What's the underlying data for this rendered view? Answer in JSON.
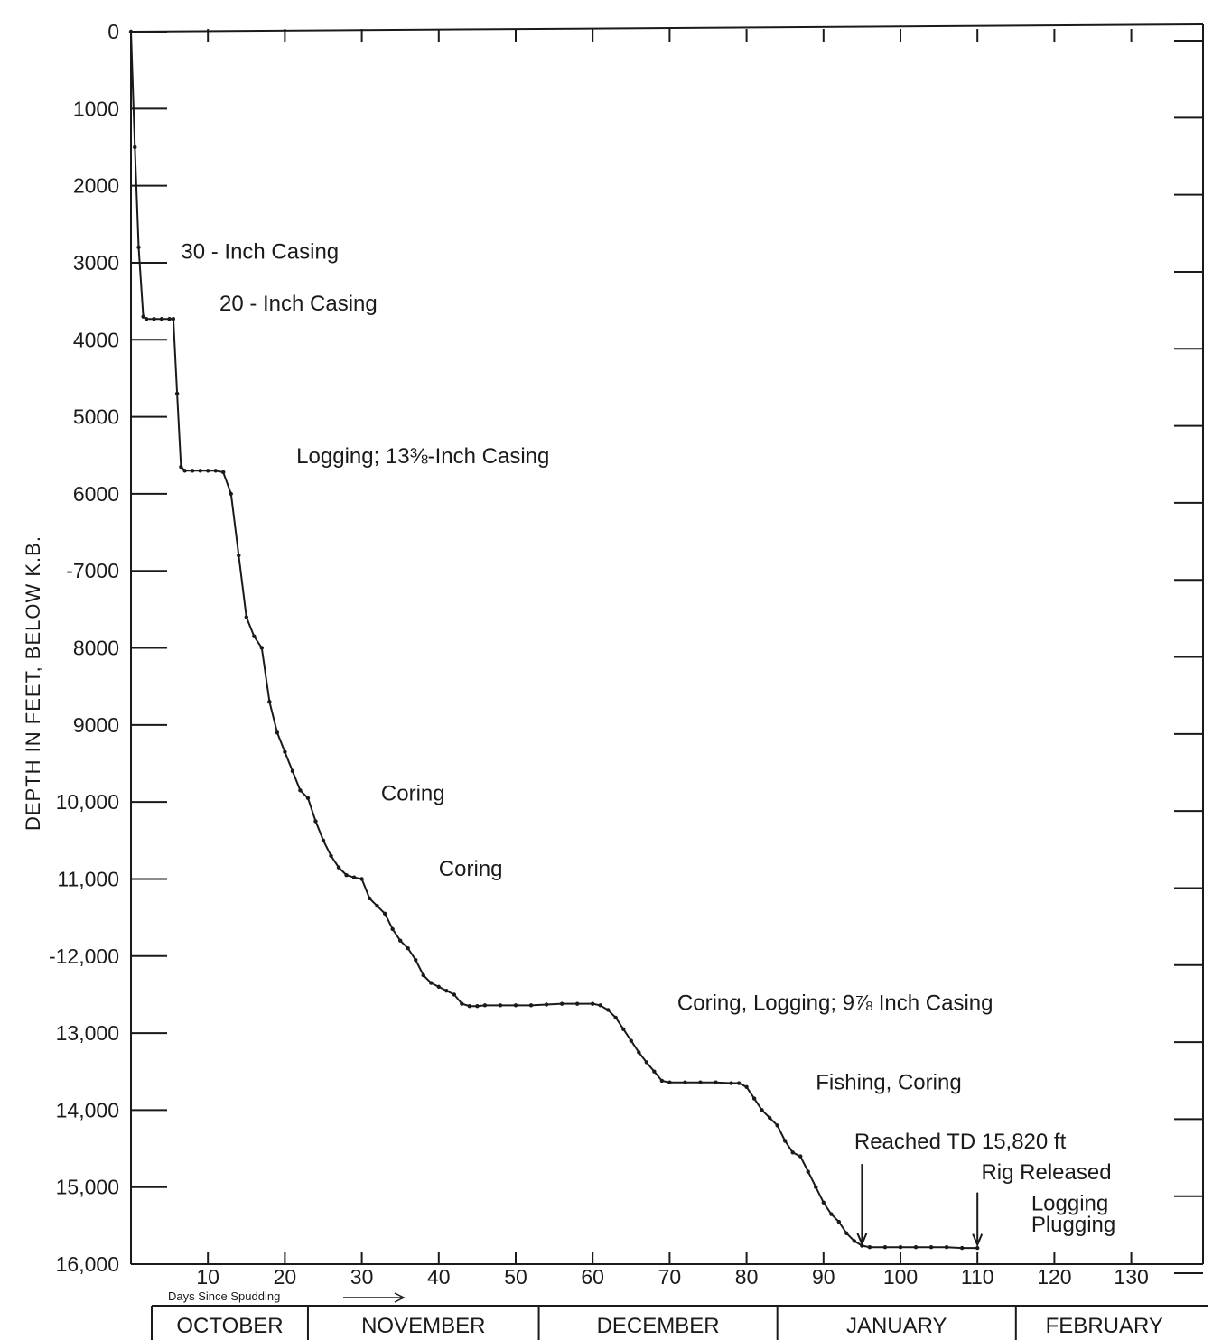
{
  "chart_data": {
    "type": "line",
    "title": "",
    "ylabel": "DEPTH IN FEET, BELOW K.B.",
    "xlabel": "Days Since Spudding",
    "xlim": [
      0,
      138
    ],
    "ylim": [
      0,
      16000
    ],
    "y_inverted": true,
    "grid": false,
    "yticks": [
      0,
      1000,
      2000,
      3000,
      4000,
      5000,
      6000,
      7000,
      8000,
      9000,
      10000,
      11000,
      12000,
      13000,
      14000,
      15000,
      16000
    ],
    "ytick_labels": [
      "0",
      "1000",
      "2000",
      "3000",
      "4000",
      "5000",
      "6000",
      "-7000",
      "8000",
      "9000",
      "10,000",
      "11,000",
      "-12,000",
      "13,000",
      "14,000",
      "15,000",
      "16,000"
    ],
    "xticks": [
      10,
      20,
      30,
      40,
      50,
      60,
      70,
      80,
      90,
      100,
      110,
      120,
      130
    ],
    "xtick_labels": [
      "10",
      "20",
      "30",
      "40",
      "50",
      "60",
      "70",
      "80",
      "90",
      "100",
      "110",
      "120",
      "130"
    ],
    "months": [
      {
        "name": "OCTOBER",
        "start": 0,
        "end": 23
      },
      {
        "name": "NOVEMBER",
        "start": 23,
        "end": 53
      },
      {
        "name": "DECEMBER",
        "start": 53,
        "end": 84
      },
      {
        "name": "JANUARY",
        "start": 84,
        "end": 115
      },
      {
        "name": "FEBRUARY",
        "start": 115,
        "end": 138
      }
    ],
    "series": [
      {
        "x": [
          0,
          0.5,
          1,
          1.6,
          2,
          3,
          4,
          5,
          5.5,
          6,
          6.5,
          7,
          8,
          9,
          10,
          11,
          12,
          13,
          14,
          15,
          16,
          17,
          18,
          19,
          20,
          21,
          22,
          23,
          24,
          25,
          26,
          27,
          28,
          29,
          30,
          31,
          32,
          33,
          34,
          35,
          36,
          37,
          38,
          39,
          40,
          41,
          42,
          43,
          44,
          45,
          46,
          48,
          50,
          52,
          54,
          56,
          58,
          60,
          61,
          62,
          63,
          64,
          65,
          66,
          67,
          68,
          69,
          70,
          72,
          74,
          76,
          78,
          79,
          80,
          81,
          82,
          83,
          84,
          85,
          86,
          87,
          88,
          89,
          90,
          91,
          92,
          93,
          94,
          95,
          96,
          98,
          100,
          102,
          104,
          106,
          108,
          110
        ],
        "y": [
          0,
          1500,
          2800,
          3700,
          3730,
          3730,
          3730,
          3730,
          3730,
          4700,
          5650,
          5700,
          5700,
          5700,
          5700,
          5700,
          5720,
          6000,
          6800,
          7600,
          7850,
          8000,
          8700,
          9100,
          9350,
          9600,
          9850,
          9950,
          10250,
          10500,
          10700,
          10850,
          10950,
          10980,
          11000,
          11250,
          11350,
          11450,
          11650,
          11800,
          11900,
          12050,
          12250,
          12350,
          12400,
          12450,
          12500,
          12620,
          12650,
          12650,
          12640,
          12640,
          12640,
          12640,
          12630,
          12620,
          12620,
          12620,
          12640,
          12700,
          12800,
          12950,
          13100,
          13250,
          13380,
          13500,
          13620,
          13640,
          13640,
          13640,
          13640,
          13650,
          13650,
          13700,
          13850,
          14000,
          14100,
          14200,
          14400,
          14550,
          14600,
          14800,
          15000,
          15200,
          15350,
          15450,
          15600,
          15700,
          15760,
          15780,
          15780,
          15780,
          15780,
          15780,
          15780,
          15790,
          15790
        ]
      }
    ],
    "annotations": [
      {
        "text": "30 - Inch Casing",
        "x": 6.5,
        "y": 2950
      },
      {
        "text": "20 - Inch Casing",
        "x": 11.5,
        "y": 3620
      },
      {
        "text": "Logging;   13⅜-Inch Casing",
        "x": 21.5,
        "y": 5600
      },
      {
        "text": "Coring",
        "x": 32.5,
        "y": 9980
      },
      {
        "text": "Coring",
        "x": 40,
        "y": 10960
      },
      {
        "text": "Coring, Logging;     9⅞ Inch Casing",
        "x": 71,
        "y": 12700
      },
      {
        "text": "Fishing,     Coring",
        "x": 89,
        "y": 13730
      },
      {
        "text": "Reached TD 15,820 ft",
        "x": 94,
        "y": 14500
      },
      {
        "text": "Rig Released",
        "x": 110.5,
        "y": 14900
      },
      {
        "text": "Logging",
        "x": 117,
        "y": 15300
      },
      {
        "text": "Plugging",
        "x": 117,
        "y": 15580
      }
    ],
    "arrows": [
      {
        "x": 95,
        "from_y": 14700,
        "to_y": 15740
      },
      {
        "x": 110,
        "from_y": 15070,
        "to_y": 15750
      }
    ]
  }
}
